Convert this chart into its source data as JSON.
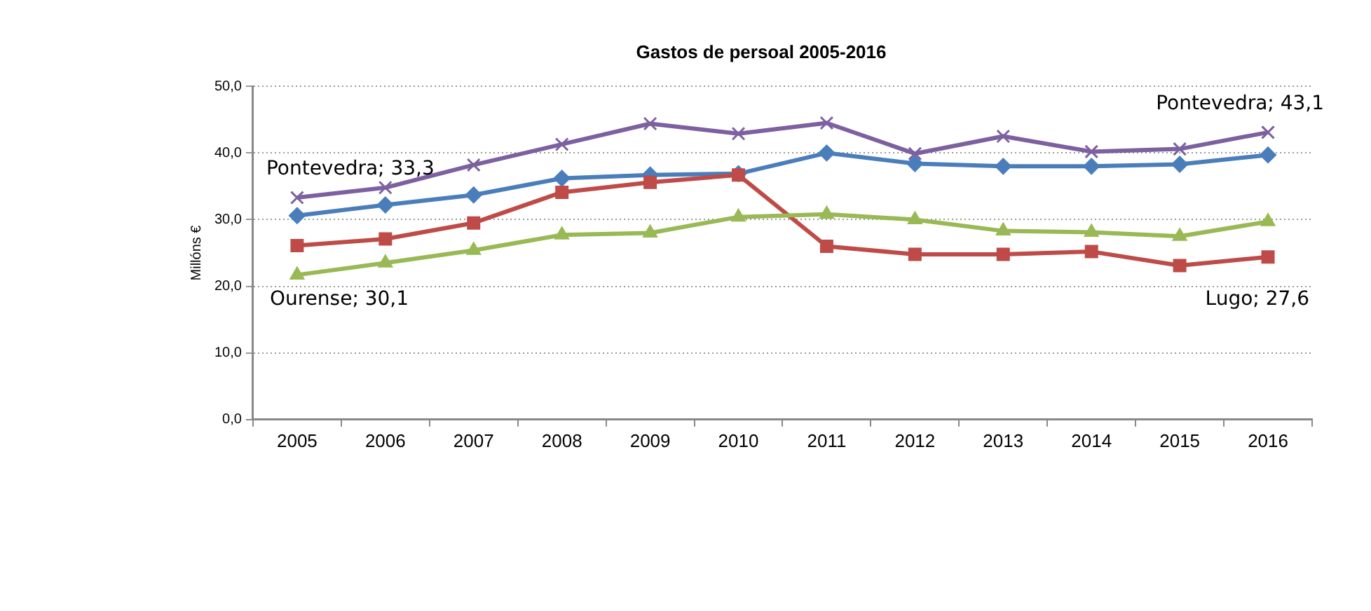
{
  "chart_data": {
    "type": "line",
    "title": "Gastos de persoal 2005-2016",
    "ylabel": "Millóns €",
    "categories": [
      "2005",
      "2006",
      "2007",
      "2008",
      "2009",
      "2010",
      "2011",
      "2012",
      "2013",
      "2014",
      "2015",
      "2016"
    ],
    "series": [
      {
        "color": "#4a7ebb",
        "marker": "diamond",
        "values": [
          30.6,
          32.2,
          33.7,
          36.2,
          36.7,
          36.9,
          40.0,
          38.4,
          38.0,
          38.0,
          38.3,
          39.7
        ]
      },
      {
        "color": "#be4b48",
        "marker": "square",
        "values": [
          26.1,
          27.1,
          29.5,
          34.1,
          35.6,
          36.7,
          26.0,
          24.8,
          24.8,
          25.2,
          23.1,
          24.4
        ]
      },
      {
        "color": "#98b954",
        "marker": "triangle",
        "values": [
          21.7,
          23.5,
          25.4,
          27.7,
          28.0,
          30.4,
          30.8,
          30.0,
          28.3,
          28.1,
          27.5,
          29.7
        ]
      },
      {
        "color": "#7d60a0",
        "marker": "cross",
        "values": [
          33.3,
          34.8,
          38.2,
          41.3,
          44.4,
          42.9,
          44.5,
          39.9,
          42.5,
          40.2,
          40.6,
          43.1
        ]
      }
    ],
    "ylim": [
      0,
      50
    ],
    "yticks": [
      {
        "value": 0,
        "label": "0,0"
      },
      {
        "value": 10,
        "label": "10,0"
      },
      {
        "value": 20,
        "label": "20,0"
      },
      {
        "value": 30,
        "label": "30,0"
      },
      {
        "value": 40,
        "label": "40,0"
      },
      {
        "value": 50,
        "label": "50,0"
      }
    ],
    "grid": "y",
    "legend": false,
    "annotations": [
      {
        "text": "Pontevedra; 33,3",
        "x": "2005",
        "y": 33.3
      },
      "Ourense; 30,1",
      "Lugo; 27,6",
      {
        "text": "Pontevedra; 43,1",
        "x": "2016",
        "y": 43.1
      }
    ]
  }
}
